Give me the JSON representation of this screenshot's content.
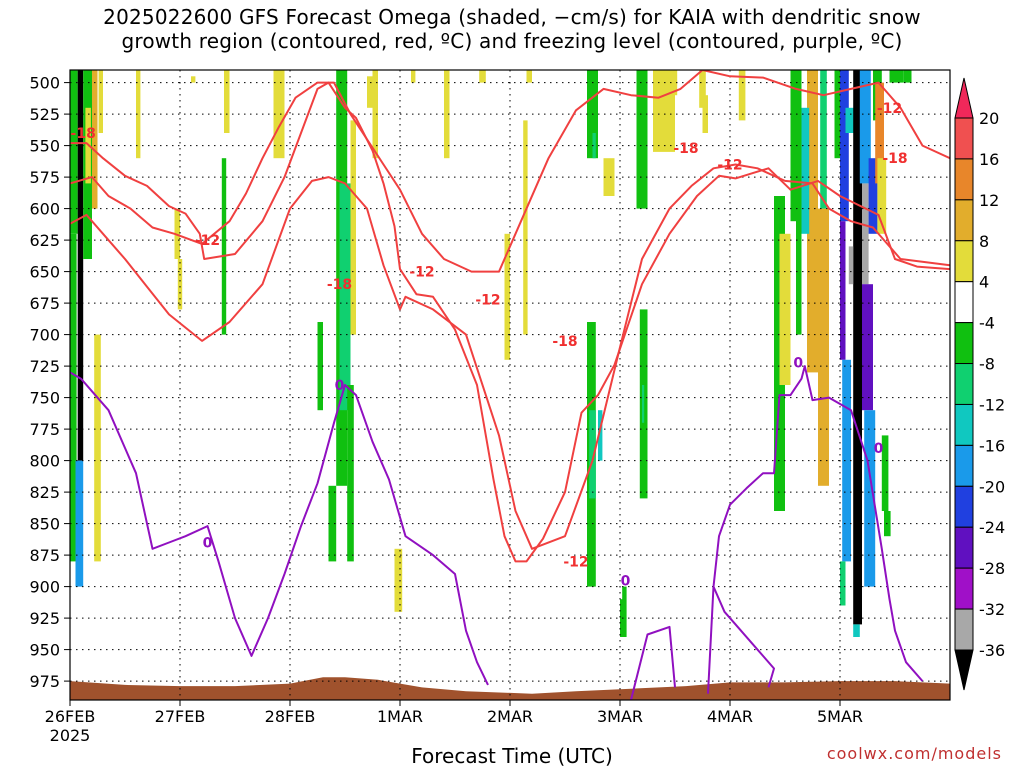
{
  "title_line1": "2025022600 GFS Forecast Omega (shaded, −cm/s) for KAIA with dendritic snow",
  "title_line2": "growth region (contoured, red, ºC) and freezing level (contoured, purple, ºC)",
  "xlabel": "Forecast Time (UTC)",
  "credit": "coolwx.com/models",
  "chart_data": {
    "type": "heatmap",
    "x_ticks": [
      "26FEB\n2025",
      "27FEB",
      "28FEB",
      "1MAR",
      "2MAR",
      "3MAR",
      "4MAR",
      "5MAR"
    ],
    "y_ticks": [
      500,
      525,
      550,
      575,
      600,
      625,
      650,
      675,
      700,
      725,
      750,
      775,
      800,
      825,
      850,
      875,
      900,
      925,
      950,
      975
    ],
    "ylabel": "",
    "y_range_hPa": [
      490,
      990
    ],
    "x_range_days_from_26FEB00": [
      0,
      8.0
    ],
    "colorbar": {
      "levels": [
        20,
        16,
        12,
        8,
        4,
        -4,
        -8,
        -12,
        -16,
        -20,
        -24,
        -28,
        -32,
        -36
      ],
      "colors": [
        "#f0285a",
        "#f05050",
        "#e8862a",
        "#e2ad2c",
        "#e3dc3a",
        "#ffffff",
        "#10c010",
        "#10d070",
        "#10c8c0",
        "#1a9aea",
        "#2040e0",
        "#6010c0",
        "#a010c8",
        "#a8a8a8",
        "#000000"
      ]
    },
    "contours": {
      "red_labels": [
        "-18",
        "-12",
        "-18",
        "-12",
        "-12",
        "-18",
        "-12",
        "-18",
        "-12",
        "-18",
        "-12"
      ],
      "purple_labels": [
        "0",
        "0",
        "0",
        "0",
        "0"
      ]
    },
    "terrain_color": "#a0522d"
  }
}
